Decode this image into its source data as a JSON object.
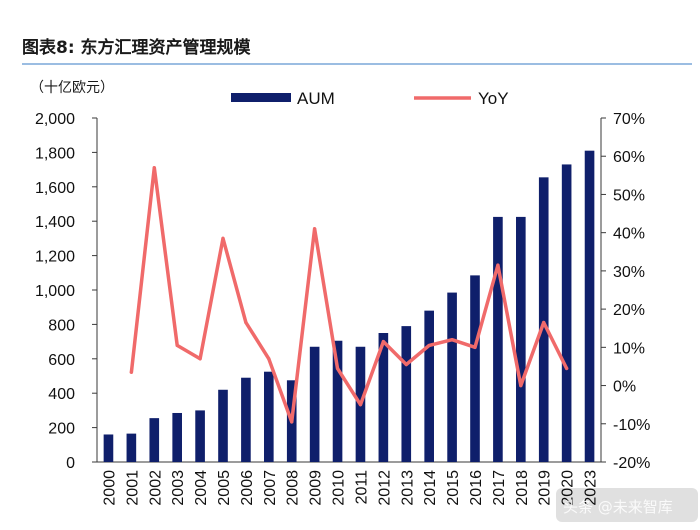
{
  "header": {
    "title": "图表8:   东方汇理资产管理规模",
    "unit": "（十亿欧元）"
  },
  "colors": {
    "bar": "#0f1f6b",
    "line": "#f06a6a",
    "axis": "#3a3a3a",
    "rule": "#7aa7d8"
  },
  "watermark": "头条 @未来智库",
  "chart_data": {
    "type": "bar",
    "title": "东方汇理资产管理规模",
    "categories": [
      "2000",
      "2001",
      "2002",
      "2003",
      "2004",
      "2005",
      "2006",
      "2007",
      "2008",
      "2009",
      "2010",
      "2011",
      "2012",
      "2013",
      "2014",
      "2015",
      "2016",
      "2017",
      "2018",
      "2019",
      "2020",
      "2023"
    ],
    "series": [
      {
        "name": "AUM",
        "type": "bar",
        "axis": "left",
        "values": [
          160,
          165,
          255,
          285,
          300,
          420,
          490,
          525,
          475,
          670,
          705,
          670,
          750,
          790,
          880,
          985,
          1085,
          1425,
          1425,
          1655,
          1730,
          1810
        ]
      },
      {
        "name": "YoY",
        "type": "line",
        "axis": "right",
        "values": [
          null,
          3.5,
          57,
          10.5,
          7,
          38.5,
          16.5,
          7,
          -9.5,
          41,
          4.5,
          -5,
          11.5,
          5.5,
          10.5,
          12,
          10,
          31.5,
          0,
          16.5,
          4.5,
          null
        ]
      }
    ],
    "ylim": [
      0,
      2000
    ],
    "y_ticks": [
      "0",
      "200",
      "400",
      "600",
      "800",
      "1,000",
      "1,200",
      "1,400",
      "1,600",
      "1,800",
      "2,000"
    ],
    "y2lim": [
      -20,
      70
    ],
    "y2_ticks": [
      "-20%",
      "-10%",
      "0%",
      "10%",
      "20%",
      "30%",
      "40%",
      "50%",
      "60%",
      "70%"
    ],
    "legend": [
      "AUM",
      "YoY"
    ],
    "legend_position": "top"
  }
}
